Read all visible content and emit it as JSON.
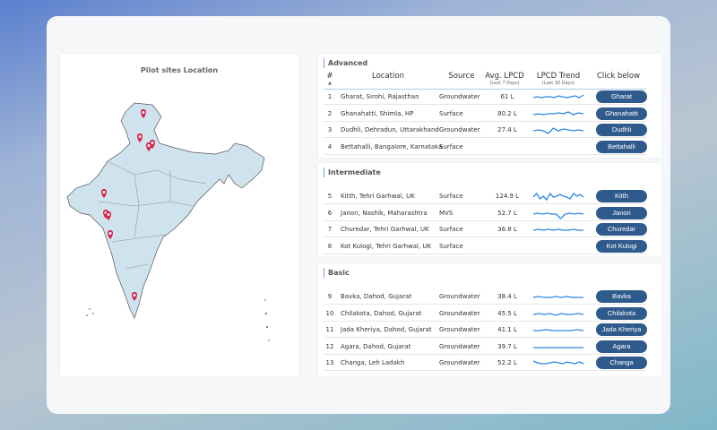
{
  "map": {
    "title": "Pilot sites Location",
    "fill": "#cfe3ef",
    "pin_color": "#d6234a"
  },
  "columns": {
    "num": "#",
    "location": "Location",
    "source": "Source",
    "avg": "Avg. LPCD",
    "avg_sub": "(Last 7 Days)",
    "trend": "LPCD Trend",
    "trend_sub": "(Last 30 Days)",
    "action": "Click below"
  },
  "accent": "#2f5a8c",
  "sections": [
    {
      "title": "Advanced",
      "rows": [
        {
          "num": "1",
          "location": "Gharat, Sirohi, Rajasthan",
          "source": "Groundwater",
          "avg": "61 L",
          "button": "Gharat"
        },
        {
          "num": "2",
          "location": "Ghanahatti, Shimla, HP",
          "source": "Surface",
          "avg": "80.2 L",
          "button": "Ghanahatti"
        },
        {
          "num": "3",
          "location": "Dudhli, Dehradun, Uttarakhand",
          "source": "Groundwater",
          "avg": "27.4 L",
          "button": "Dudhli"
        },
        {
          "num": "4",
          "location": "Bettahalli, Bangalore, Karnataka",
          "source": "Surface",
          "avg": "",
          "button": "Bettahalli"
        }
      ]
    },
    {
      "title": "Intermediate",
      "rows": [
        {
          "num": "5",
          "location": "Kitth, Tehri Garhwal, UK",
          "source": "Surface",
          "avg": "124.9 L",
          "button": "Kitth"
        },
        {
          "num": "6",
          "location": "Janori, Nashik, Maharashtra",
          "source": "MVS",
          "avg": "52.7 L",
          "button": "Janori"
        },
        {
          "num": "7",
          "location": "Churedar, Tehri Garhwal, UK",
          "source": "Surface",
          "avg": "36.8 L",
          "button": "Churedar"
        },
        {
          "num": "8",
          "location": "Kot Kulogi, Tehri Garhwal, UK",
          "source": "Surface",
          "avg": "",
          "button": "Kot Kulogi"
        }
      ]
    },
    {
      "title": "Basic",
      "rows": [
        {
          "num": "9",
          "location": "Bavka, Dahod, Gujarat",
          "source": "Groundwater",
          "avg": "38.4 L",
          "button": "Bavka"
        },
        {
          "num": "10",
          "location": "Chilakota, Dahod, Gujarat",
          "source": "Groundwater",
          "avg": "45.5 L",
          "button": "Chilakota"
        },
        {
          "num": "11",
          "location": "Jada Kheriya, Dahod, Gujarat",
          "source": "Groundwater",
          "avg": "41.1 L",
          "button": "Jada Kheriya"
        },
        {
          "num": "12",
          "location": "Agara, Dahod, Gujarat",
          "source": "Groundwater",
          "avg": "39.7 L",
          "button": "Agara"
        },
        {
          "num": "13",
          "location": "Changa, Leh Ladakh",
          "source": "Groundwater",
          "avg": "52.2 L",
          "button": "Changa"
        }
      ]
    }
  ]
}
